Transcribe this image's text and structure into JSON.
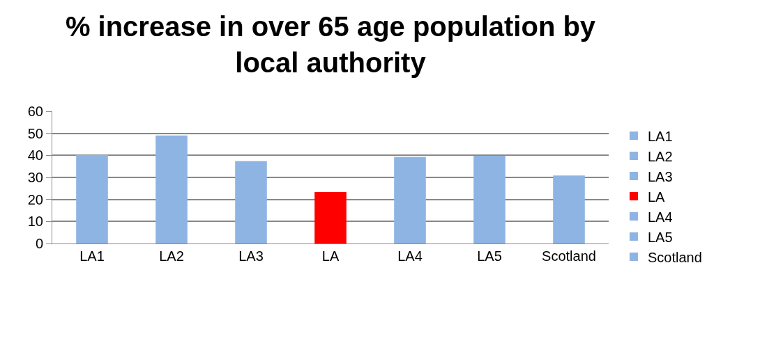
{
  "chart_data": {
    "type": "bar",
    "title": "% increase in over 65 age population by local authority",
    "categories": [
      "LA1",
      "LA2",
      "LA3",
      "LA",
      "LA4",
      "LA5",
      "Scotland"
    ],
    "series": [
      {
        "name": "LA1",
        "color": "#8eb4e3",
        "values": [
          40.2,
          null,
          null,
          null,
          null,
          null,
          null
        ]
      },
      {
        "name": "LA2",
        "color": "#8eb4e3",
        "values": [
          null,
          49,
          null,
          null,
          null,
          null,
          null
        ]
      },
      {
        "name": "LA3",
        "color": "#8eb4e3",
        "values": [
          null,
          null,
          37.4,
          null,
          null,
          null,
          null
        ]
      },
      {
        "name": "LA",
        "color": "#ff0000",
        "values": [
          null,
          null,
          null,
          23.4,
          null,
          null,
          null
        ]
      },
      {
        "name": "LA4",
        "color": "#8eb4e3",
        "values": [
          null,
          null,
          null,
          null,
          39.3,
          null,
          null
        ]
      },
      {
        "name": "LA5",
        "color": "#8eb4e3",
        "values": [
          null,
          null,
          null,
          null,
          null,
          39.8,
          null
        ]
      },
      {
        "name": "Scotland",
        "color": "#8eb4e3",
        "values": [
          null,
          null,
          null,
          null,
          null,
          null,
          30.9
        ]
      }
    ],
    "ylim": [
      0,
      60
    ],
    "yticks": [
      0,
      10,
      20,
      30,
      40,
      50,
      60
    ],
    "grid": "y",
    "legend": "right"
  }
}
